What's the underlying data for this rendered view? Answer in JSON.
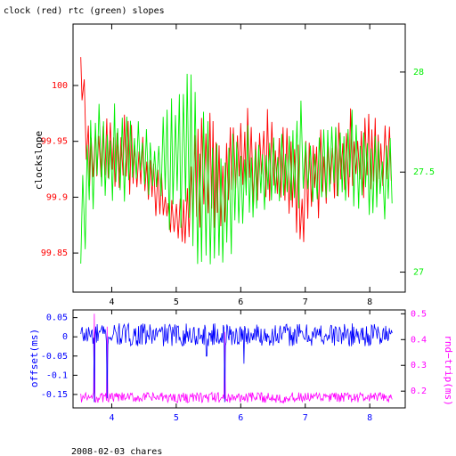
{
  "header": {
    "title": "clock (red) rtc (green) slopes",
    "footer": "2008-02-03 chares"
  },
  "colors": {
    "clock": "#ff0000",
    "rtc": "#00ee00",
    "offset": "#0000ff",
    "rndtrip": "#ff00ff",
    "axis": "#000000"
  },
  "chart_data": [
    {
      "type": "line",
      "title": "clock (red) rtc (green) slopes",
      "xlabel": "",
      "ylabel": "clockslope",
      "xlim": [
        3.4,
        8.55
      ],
      "ylim_left": [
        99.815,
        100.055
      ],
      "ylim_right": [
        26.9,
        28.24
      ],
      "x_ticks": [
        4,
        5,
        6,
        7,
        8
      ],
      "y_ticks_left": [
        99.85,
        99.9,
        99.95,
        100
      ],
      "y_ticks_right": [
        27,
        27.5,
        28
      ],
      "grid": false,
      "series": [
        {
          "name": "clock",
          "axis": "left",
          "color": "#ff0000",
          "x_start": 3.52,
          "x_end": 8.35,
          "envelope_x": [
            3.52,
            3.56,
            3.62,
            3.7,
            3.9,
            4.1,
            4.3,
            4.45,
            4.6,
            4.72,
            4.85,
            5.0,
            5.15,
            5.3,
            5.45,
            5.6,
            5.75,
            5.85,
            6.0,
            6.2,
            6.4,
            6.6,
            6.8,
            6.92,
            6.96,
            7.0,
            7.1,
            7.3,
            7.5,
            7.7,
            7.9,
            8.1,
            8.35
          ],
          "envelope_low": [
            99.96,
            99.99,
            99.9,
            99.91,
            99.9,
            99.9,
            99.89,
            99.89,
            99.89,
            99.87,
            99.87,
            99.86,
            99.85,
            99.85,
            99.85,
            99.86,
            99.87,
            99.9,
            99.9,
            99.89,
            99.89,
            99.88,
            99.87,
            99.84,
            99.82,
            99.87,
            99.88,
            99.88,
            99.89,
            99.89,
            99.89,
            99.89,
            99.89
          ],
          "envelope_high": [
            100.035,
            100.03,
            99.98,
            99.97,
            99.97,
            99.98,
            99.97,
            99.96,
            99.95,
            99.93,
            99.91,
            99.9,
            99.91,
            99.97,
            99.99,
            99.97,
            99.95,
            99.97,
            99.98,
            99.98,
            99.98,
            99.97,
            99.97,
            99.96,
            99.93,
            99.97,
            99.97,
            99.96,
            99.97,
            99.98,
            99.98,
            99.975,
            99.97
          ]
        },
        {
          "name": "rtc",
          "axis": "right",
          "color": "#00ee00",
          "x_start": 3.52,
          "x_end": 8.35,
          "envelope_x": [
            3.52,
            3.6,
            3.7,
            3.9,
            4.1,
            4.3,
            4.5,
            4.7,
            4.85,
            5.0,
            5.15,
            5.3,
            5.45,
            5.6,
            5.75,
            5.85,
            6.0,
            6.2,
            6.4,
            6.6,
            6.8,
            6.9,
            6.95,
            7.0,
            7.1,
            7.3,
            7.5,
            7.7,
            7.9,
            8.1,
            8.35
          ],
          "envelope_low": [
            27.04,
            27.1,
            27.3,
            27.3,
            27.3,
            27.35,
            27.4,
            27.3,
            27.2,
            27.15,
            27.1,
            27.05,
            27.0,
            26.98,
            26.95,
            27.05,
            27.2,
            27.25,
            27.3,
            27.3,
            27.3,
            27.25,
            27.3,
            27.3,
            27.35,
            27.35,
            27.35,
            27.3,
            27.3,
            27.25,
            27.25
          ],
          "envelope_high": [
            27.45,
            27.7,
            27.85,
            27.85,
            27.85,
            27.8,
            27.75,
            27.7,
            27.85,
            28.1,
            28.1,
            27.95,
            27.8,
            27.7,
            27.7,
            27.8,
            27.75,
            27.75,
            27.72,
            27.7,
            27.7,
            27.85,
            28.1,
            27.7,
            27.7,
            27.75,
            27.85,
            27.85,
            27.75,
            27.7,
            27.7
          ]
        }
      ]
    },
    {
      "type": "line",
      "xlabel": "",
      "ylabel_left": "offset(ms)",
      "ylabel_right": "rnd−trip(ms)",
      "xlim": [
        3.4,
        8.55
      ],
      "ylim_left": [
        -0.185,
        0.07
      ],
      "ylim_right": [
        0.135,
        0.515
      ],
      "x_ticks": [
        4,
        5,
        6,
        7,
        8
      ],
      "y_ticks_left": [
        -0.15,
        -0.1,
        -0.05,
        0,
        0.05
      ],
      "y_ticks_right": [
        0.2,
        0.3,
        0.4,
        0.5
      ],
      "grid": false,
      "series": [
        {
          "name": "offset",
          "axis": "left",
          "color": "#0000ff",
          "x_start": 3.52,
          "x_end": 8.35,
          "baseline": 0.005,
          "amplitude": 0.03,
          "spikes": [
            {
              "x": 3.73,
              "y": -0.17
            },
            {
              "x": 3.93,
              "y": -0.16
            },
            {
              "x": 5.47,
              "y": -0.05
            },
            {
              "x": 5.75,
              "y": -0.17
            },
            {
              "x": 6.05,
              "y": -0.07
            }
          ]
        },
        {
          "name": "rnd-trip",
          "axis": "right",
          "color": "#ff00ff",
          "x_start": 3.52,
          "x_end": 8.35,
          "baseline": 0.175,
          "amplitude": 0.02,
          "spikes": [
            {
              "x": 3.73,
              "y": 0.5
            },
            {
              "x": 3.93,
              "y": 0.45
            },
            {
              "x": 5.75,
              "y": 0.43
            }
          ]
        }
      ]
    }
  ]
}
